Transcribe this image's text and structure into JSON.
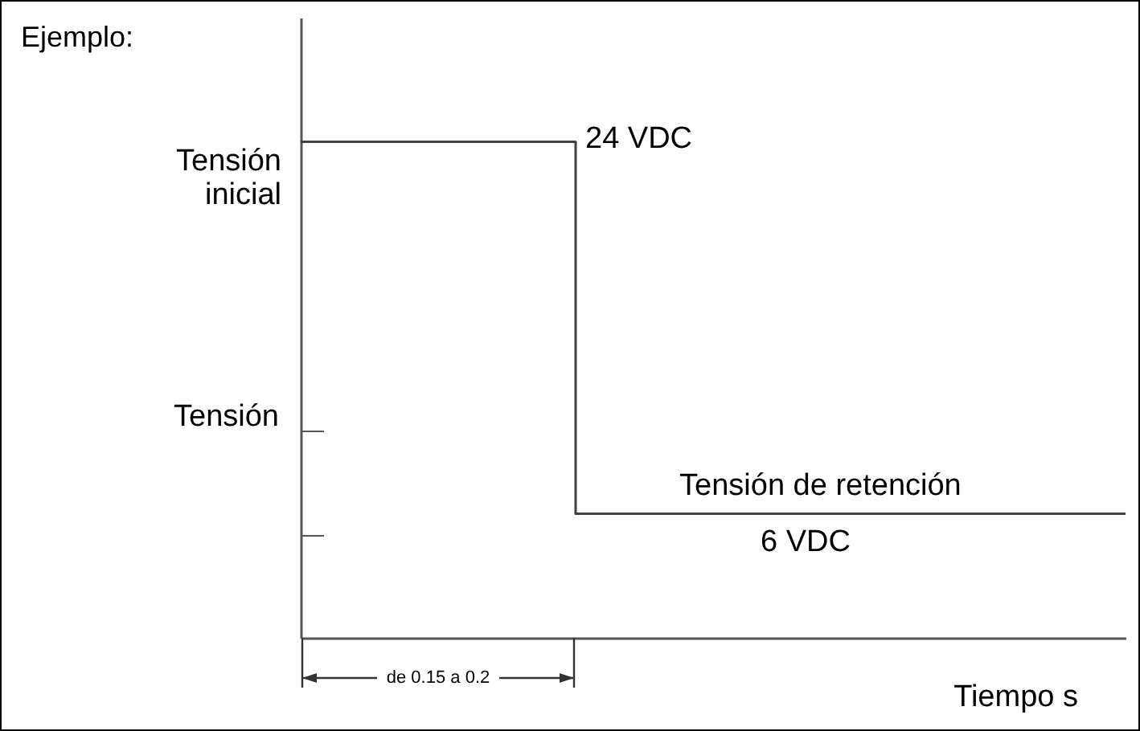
{
  "chart_data": {
    "type": "step",
    "title": "Ejemplo:",
    "ylabel": "Tensión",
    "xlabel": "Tiempo s",
    "categories": [
      null,
      null,
      null,
      null
    ],
    "values": [
      24,
      24,
      6,
      6
    ],
    "value_labels": [
      null,
      "24 VDC",
      "6 VDC",
      null
    ],
    "color": "#404040",
    "ylim": [
      0,
      30
    ],
    "yticks": [
      {
        "value": 5,
        "label": null
      },
      {
        "value": 10,
        "label": null
      }
    ],
    "grid": false,
    "annotations": [
      "Tensión inicial",
      "Tensión de retención",
      "de 0.15 a 0.2"
    ]
  }
}
